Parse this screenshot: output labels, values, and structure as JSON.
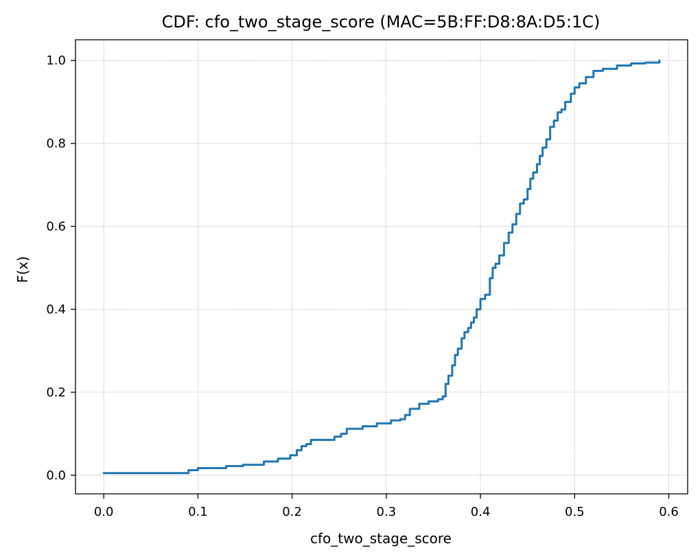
{
  "chart_data": {
    "type": "line",
    "title": "CDF: cfo_two_stage_score (MAC=5B:FF:D8:8A:D5:1C)",
    "xlabel": "cfo_two_stage_score",
    "ylabel": "F(x)",
    "xlim": [
      -0.03,
      0.62
    ],
    "ylim": [
      -0.045,
      1.05
    ],
    "x_ticks": [
      0.0,
      0.1,
      0.2,
      0.3,
      0.4,
      0.5,
      0.6
    ],
    "x_tick_labels": [
      "0.0",
      "0.1",
      "0.2",
      "0.3",
      "0.4",
      "0.5",
      "0.6"
    ],
    "y_ticks": [
      0.0,
      0.2,
      0.4,
      0.6,
      0.8,
      1.0
    ],
    "y_tick_labels": [
      "0.0",
      "0.2",
      "0.4",
      "0.6",
      "0.8",
      "1.0"
    ],
    "grid": true,
    "color": "#1f77b4",
    "series": [
      {
        "x": [
          0.0,
          0.085,
          0.09,
          0.1,
          0.13,
          0.148,
          0.17,
          0.185,
          0.198,
          0.205,
          0.21,
          0.215,
          0.22,
          0.245,
          0.252,
          0.258,
          0.275,
          0.29,
          0.305,
          0.315,
          0.32,
          0.325,
          0.335,
          0.345,
          0.355,
          0.36,
          0.363,
          0.366,
          0.37,
          0.373,
          0.376,
          0.38,
          0.383,
          0.387,
          0.39,
          0.393,
          0.396,
          0.4,
          0.405,
          0.41,
          0.413,
          0.416,
          0.42,
          0.425,
          0.43,
          0.434,
          0.438,
          0.442,
          0.446,
          0.45,
          0.453,
          0.456,
          0.46,
          0.463,
          0.466,
          0.47,
          0.474,
          0.478,
          0.482,
          0.486,
          0.49,
          0.496,
          0.5,
          0.505,
          0.512,
          0.52,
          0.53,
          0.545,
          0.56,
          0.575,
          0.59
        ],
        "y": [
          0.005,
          0.005,
          0.012,
          0.017,
          0.022,
          0.025,
          0.033,
          0.04,
          0.048,
          0.06,
          0.07,
          0.075,
          0.085,
          0.093,
          0.1,
          0.112,
          0.118,
          0.125,
          0.132,
          0.135,
          0.145,
          0.16,
          0.172,
          0.178,
          0.183,
          0.19,
          0.22,
          0.24,
          0.265,
          0.29,
          0.305,
          0.33,
          0.345,
          0.355,
          0.368,
          0.38,
          0.4,
          0.425,
          0.435,
          0.475,
          0.5,
          0.51,
          0.53,
          0.56,
          0.585,
          0.605,
          0.63,
          0.655,
          0.665,
          0.69,
          0.715,
          0.73,
          0.75,
          0.77,
          0.79,
          0.81,
          0.84,
          0.855,
          0.875,
          0.882,
          0.9,
          0.92,
          0.935,
          0.945,
          0.96,
          0.975,
          0.98,
          0.988,
          0.993,
          0.995,
          1.0
        ]
      }
    ]
  }
}
